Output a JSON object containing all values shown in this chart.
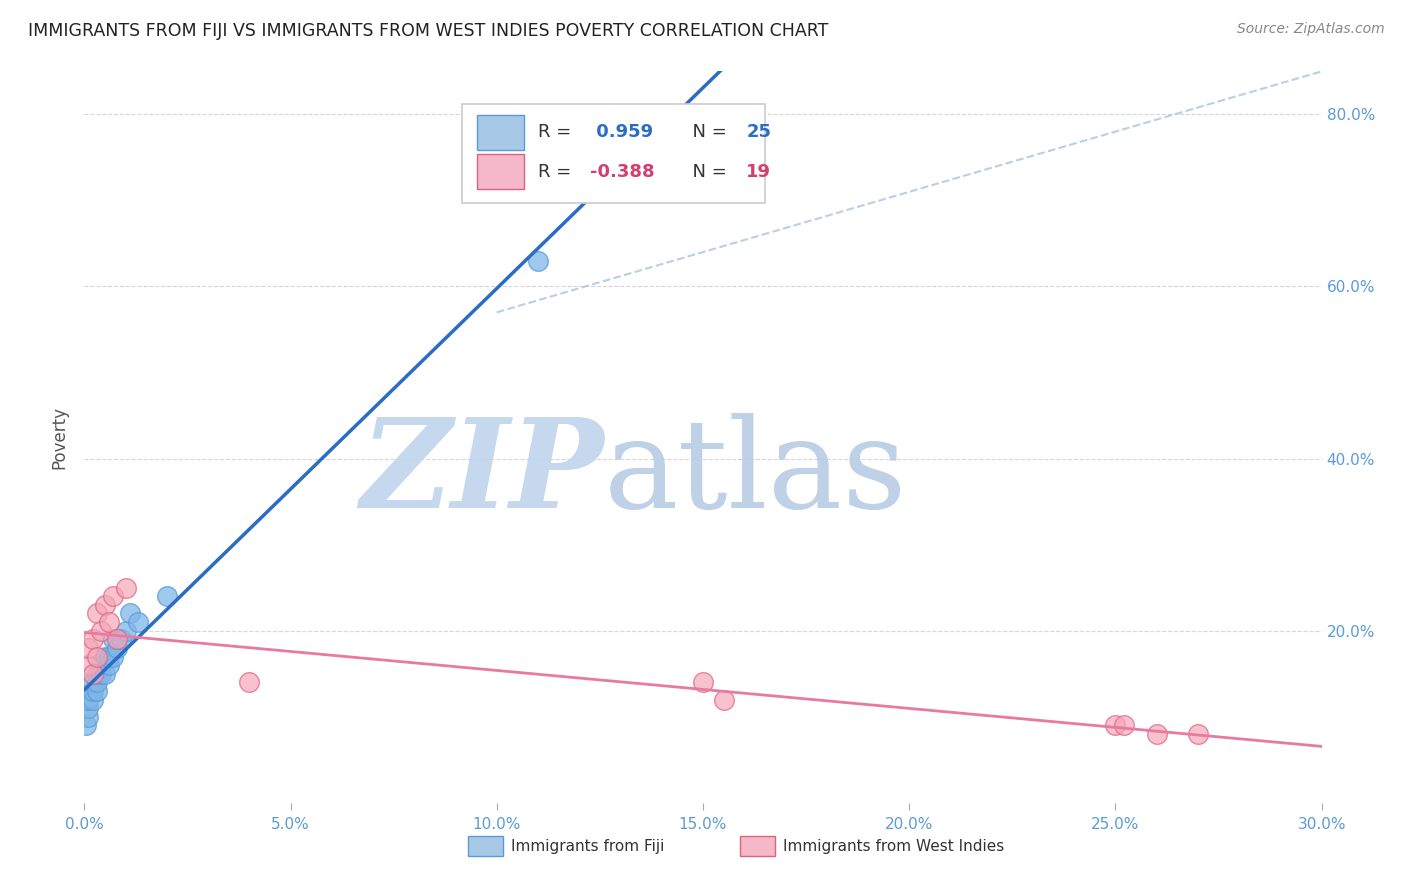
{
  "title": "IMMIGRANTS FROM FIJI VS IMMIGRANTS FROM WEST INDIES POVERTY CORRELATION CHART",
  "source": "Source: ZipAtlas.com",
  "ylabel": "Poverty",
  "xlim": [
    0.0,
    0.3
  ],
  "ylim": [
    0.0,
    0.85
  ],
  "xtick_labels": [
    "0.0%",
    "5.0%",
    "10.0%",
    "15.0%",
    "20.0%",
    "25.0%",
    "30.0%"
  ],
  "xtick_values": [
    0.0,
    0.05,
    0.1,
    0.15,
    0.2,
    0.25,
    0.3
  ],
  "ytick_labels": [
    "20.0%",
    "40.0%",
    "60.0%",
    "80.0%"
  ],
  "ytick_values": [
    0.2,
    0.4,
    0.6,
    0.8
  ],
  "fiji_R": 0.959,
  "fiji_N": 25,
  "wi_R": -0.388,
  "wi_N": 19,
  "fiji_color": "#7EB6E8",
  "fiji_edge_color": "#5B9BD5",
  "wi_color": "#F4A7B9",
  "wi_edge_color": "#E06080",
  "fiji_line_color": "#2B6CC4",
  "wi_line_color": "#E87AA0",
  "dashed_line_color": "#A8C4DC",
  "grid_color": "#CCCCCC",
  "title_color": "#222222",
  "axis_color": "#5B9BD5",
  "watermark_zip_color": "#C0D4EC",
  "watermark_atlas_color": "#B8CCE4",
  "fiji_legend_color": "#A8C8E8",
  "wi_legend_color": "#F4B8C8",
  "legend_text_fiji_r": "#2B6CC4",
  "legend_text_wi_r": "#D04070",
  "fiji_x": [
    0.0005,
    0.001,
    0.001,
    0.001,
    0.002,
    0.002,
    0.002,
    0.003,
    0.003,
    0.003,
    0.004,
    0.004,
    0.005,
    0.005,
    0.006,
    0.006,
    0.007,
    0.007,
    0.008,
    0.009,
    0.01,
    0.011,
    0.013,
    0.02,
    0.11
  ],
  "fiji_y": [
    0.09,
    0.1,
    0.11,
    0.12,
    0.12,
    0.13,
    0.14,
    0.13,
    0.14,
    0.15,
    0.15,
    0.16,
    0.15,
    0.17,
    0.16,
    0.17,
    0.17,
    0.19,
    0.18,
    0.19,
    0.2,
    0.22,
    0.21,
    0.24,
    0.63
  ],
  "wi_x": [
    0.001,
    0.001,
    0.002,
    0.002,
    0.003,
    0.003,
    0.004,
    0.005,
    0.006,
    0.007,
    0.008,
    0.01,
    0.04,
    0.15,
    0.155,
    0.25,
    0.252,
    0.26,
    0.27
  ],
  "wi_y": [
    0.16,
    0.18,
    0.15,
    0.19,
    0.17,
    0.22,
    0.2,
    0.23,
    0.21,
    0.24,
    0.19,
    0.25,
    0.14,
    0.14,
    0.12,
    0.09,
    0.09,
    0.08,
    0.08
  ]
}
